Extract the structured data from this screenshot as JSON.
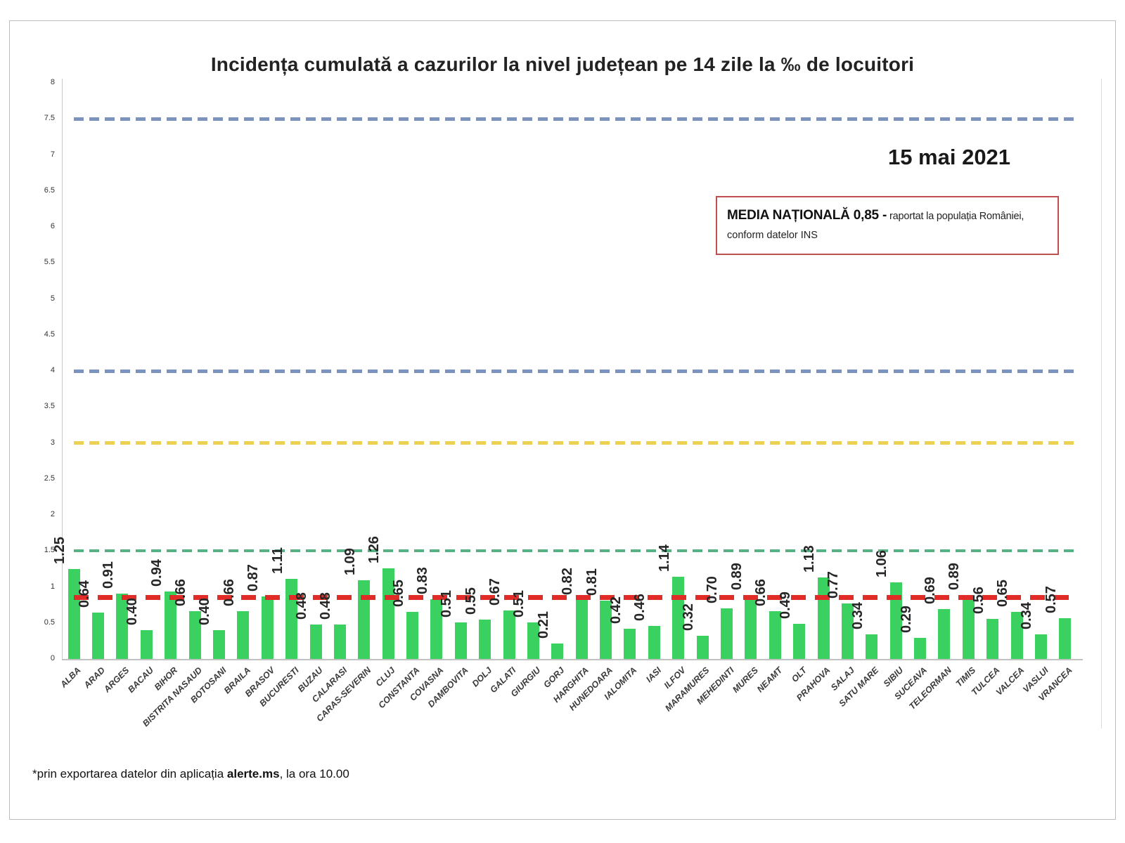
{
  "page": {
    "title": "Incidența cumulată a cazurilor la nivel județean pe 14 zile la ‰ de locuitori",
    "date_label": "15 mai 2021",
    "annotation": {
      "bold": "MEDIA NAȚIONALĂ  0,85 -",
      "regular_line1": " raportat la populația României,",
      "regular_line2": "conform datelor INS",
      "border_color": "#c0504d"
    },
    "footnote": {
      "prefix": "*prin exportarea datelor din aplicația ",
      "bold": "alerte.ms",
      "suffix": ", la ora 10.00"
    }
  },
  "chart_data": {
    "type": "bar",
    "title": "Incidența cumulată a cazurilor la nivel județean pe 14 zile la ‰ de locuitori",
    "xlabel": "",
    "ylabel": "",
    "ylim": [
      0,
      8
    ],
    "ytick_step": 0.5,
    "grid": false,
    "bar_color": "#3ad160",
    "national_average": "0,85",
    "categories": [
      "ALBA",
      "ARAD",
      "ARGES",
      "BACAU",
      "BIHOR",
      "BISTRITA NASAUD",
      "BOTOSANI",
      "BRAILA",
      "BRASOV",
      "BUCURESTI",
      "BUZAU",
      "CALARASI",
      "CARAS-SEVERIN",
      "CLUJ",
      "CONSTANTA",
      "COVASNA",
      "DAMBOVITA",
      "DOLJ",
      "GALATI",
      "GIURGIU",
      "GORJ",
      "HARGHITA",
      "HUNEDOARA",
      "IALOMITA",
      "IASI",
      "ILFOV",
      "MARAMURES",
      "MEHEDINTI",
      "MURES",
      "NEAMT",
      "OLT",
      "PRAHOVA",
      "SALAJ",
      "SATU MARE",
      "SIBIU",
      "SUCEAVA",
      "TELEORMAN",
      "TIMIS",
      "TULCEA",
      "VALCEA",
      "VASLUI",
      "VRANCEA"
    ],
    "values": [
      1.25,
      0.64,
      0.91,
      0.4,
      0.94,
      0.66,
      0.4,
      0.66,
      0.87,
      1.11,
      0.48,
      0.48,
      1.09,
      1.26,
      0.65,
      0.83,
      0.51,
      0.55,
      0.67,
      0.51,
      0.21,
      0.82,
      0.81,
      0.42,
      0.46,
      1.14,
      0.32,
      0.7,
      0.89,
      0.66,
      0.49,
      1.13,
      0.77,
      0.34,
      1.06,
      0.29,
      0.69,
      0.89,
      0.56,
      0.65,
      0.34,
      0.57
    ],
    "value_labels": [
      "1.25",
      "0.64",
      "0.91",
      "0.40",
      "0.94",
      "0.66",
      "0.40",
      "0.66",
      "0.87",
      "1.11",
      "0.48",
      "0.48",
      "1.09",
      "1.26",
      "0.65",
      "0.83",
      "0.51",
      "0.55",
      "0.67",
      "0.51",
      "0.21",
      "0.82",
      "0.81",
      "0.42",
      "0.46",
      "1.14",
      "0.32",
      "0.70",
      "0.89",
      "0.66",
      "0.49",
      "1.13",
      "0.77",
      "0.34",
      "1.06",
      "0.29",
      "0.69",
      "0.89",
      "0.56",
      "0.65",
      "0.34",
      "0.57"
    ],
    "reference_lines": [
      {
        "name": "threshold-7-5",
        "value": 7.5,
        "color": "#7b93bd",
        "thickness": 5
      },
      {
        "name": "threshold-4",
        "value": 4,
        "color": "#7b93bd",
        "thickness": 5
      },
      {
        "name": "threshold-3",
        "value": 3,
        "color": "#ecd04f",
        "thickness": 5
      },
      {
        "name": "threshold-1-5",
        "value": 1.5,
        "color": "#58b185",
        "thickness": 4
      },
      {
        "name": "national-average-line",
        "value": 0.85,
        "color": "#e02b26",
        "thickness": 7
      }
    ],
    "legend": []
  }
}
